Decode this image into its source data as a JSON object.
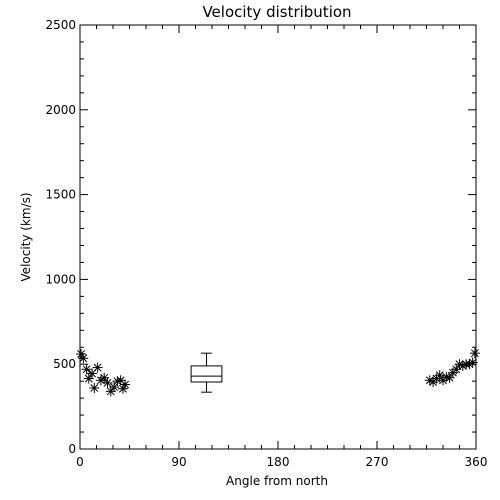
{
  "chart_data": {
    "type": "scatter",
    "title": "Velocity distribution",
    "xlabel": "Angle from north",
    "ylabel": "Velocity (km/s)",
    "xlim": [
      0,
      360
    ],
    "ylim": [
      0,
      2500
    ],
    "xticks": [
      0,
      90,
      180,
      270,
      360
    ],
    "xtick_labels": [
      "0",
      "90",
      "180",
      "270",
      "360"
    ],
    "yticks": [
      0,
      500,
      1000,
      1500,
      2000,
      2500
    ],
    "ytick_labels": [
      "0",
      "500",
      "1000",
      "1500",
      "2000",
      "2500"
    ],
    "grid": false,
    "marker": "asterisk",
    "points": [
      {
        "x": 1,
        "y": 560
      },
      {
        "x": 3,
        "y": 535
      },
      {
        "x": 6,
        "y": 470
      },
      {
        "x": 8,
        "y": 415
      },
      {
        "x": 11,
        "y": 445
      },
      {
        "x": 13,
        "y": 360
      },
      {
        "x": 16,
        "y": 480
      },
      {
        "x": 19,
        "y": 405
      },
      {
        "x": 22,
        "y": 420
      },
      {
        "x": 25,
        "y": 390
      },
      {
        "x": 28,
        "y": 340
      },
      {
        "x": 31,
        "y": 365
      },
      {
        "x": 34,
        "y": 400
      },
      {
        "x": 37,
        "y": 405
      },
      {
        "x": 39,
        "y": 355
      },
      {
        "x": 41,
        "y": 380
      },
      {
        "x": 318,
        "y": 405
      },
      {
        "x": 321,
        "y": 395
      },
      {
        "x": 324,
        "y": 415
      },
      {
        "x": 327,
        "y": 435
      },
      {
        "x": 330,
        "y": 405
      },
      {
        "x": 333,
        "y": 425
      },
      {
        "x": 336,
        "y": 420
      },
      {
        "x": 339,
        "y": 450
      },
      {
        "x": 342,
        "y": 470
      },
      {
        "x": 345,
        "y": 500
      },
      {
        "x": 348,
        "y": 490
      },
      {
        "x": 351,
        "y": 500
      },
      {
        "x": 354,
        "y": 500
      },
      {
        "x": 357,
        "y": 510
      },
      {
        "x": 359,
        "y": 565
      }
    ],
    "boxplot": {
      "x_center": 115,
      "x_width": 28,
      "min": 335,
      "q1": 395,
      "median": 430,
      "q3": 490,
      "max": 565
    }
  }
}
